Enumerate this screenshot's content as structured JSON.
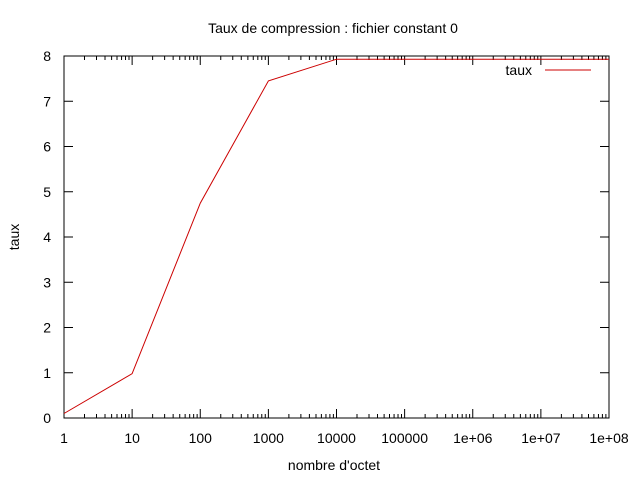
{
  "chart_data": {
    "type": "line",
    "title": "Taux de compression : fichier constant 0",
    "xlabel": "nombre d'octet",
    "ylabel": "taux",
    "x_scale": "log",
    "xlim": [
      1,
      100000000
    ],
    "ylim": [
      0,
      8
    ],
    "x_ticks": [
      1,
      10,
      100,
      1000,
      10000,
      100000,
      1000000,
      10000000,
      100000000
    ],
    "x_tick_labels": [
      "1",
      "10",
      "100",
      "1000",
      "10000",
      "100000",
      "1e+06",
      "1e+07",
      "1e+08"
    ],
    "y_ticks": [
      0,
      1,
      2,
      3,
      4,
      5,
      6,
      7,
      8
    ],
    "y_tick_labels": [
      "0",
      "1",
      "2",
      "3",
      "4",
      "5",
      "6",
      "7",
      "8"
    ],
    "grid": false,
    "legend_position": "top-right",
    "series": [
      {
        "name": "taux",
        "color": "#cc0000",
        "x": [
          1,
          10,
          100,
          1000,
          10000,
          100000,
          1000000,
          10000000,
          100000000
        ],
        "y": [
          0.1,
          0.98,
          4.75,
          7.45,
          7.93,
          7.93,
          7.93,
          7.93,
          7.93
        ]
      }
    ]
  }
}
